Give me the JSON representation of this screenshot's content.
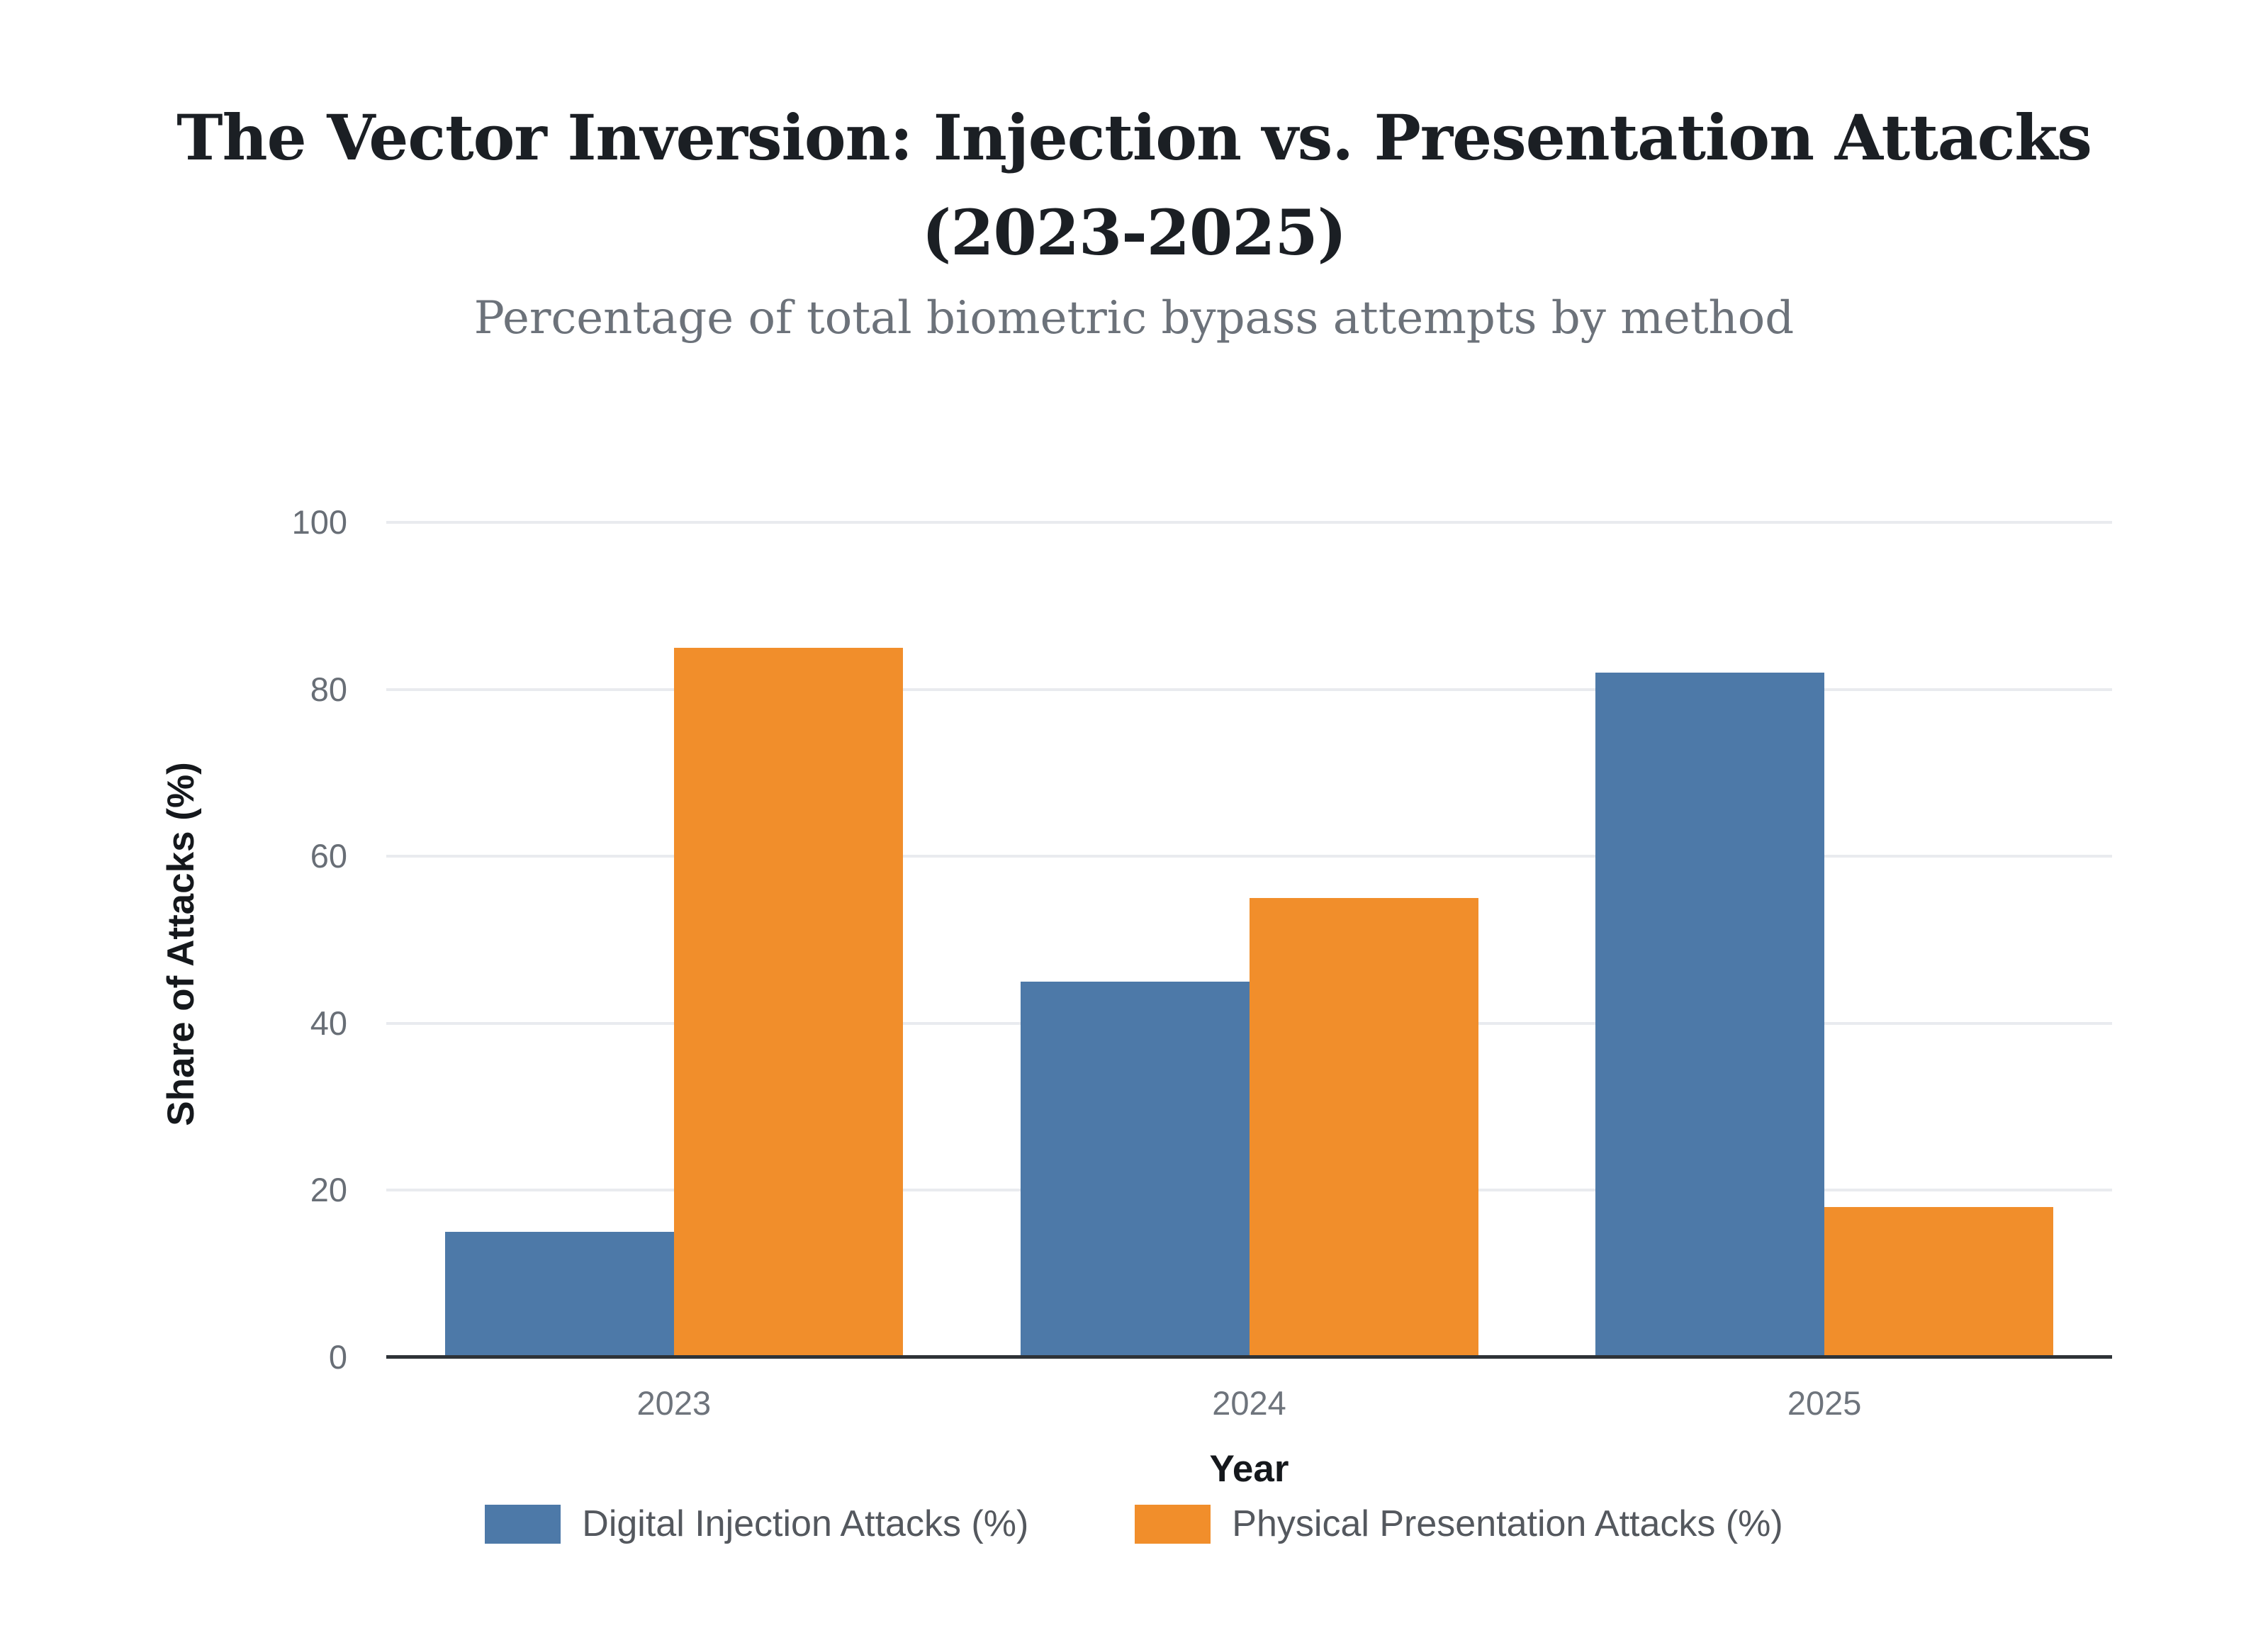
{
  "chart_data": {
    "type": "bar",
    "title": "The Vector Inversion: Injection vs. Presentation Attacks (2023-2025)",
    "subtitle": "Percentage of total biometric bypass attempts by method",
    "xlabel": "Year",
    "ylabel": "Share of Attacks (%)",
    "categories": [
      "2023",
      "2024",
      "2025"
    ],
    "series": [
      {
        "name": "Digital Injection Attacks (%)",
        "color": "#4d79a8",
        "values": [
          15,
          45,
          82
        ]
      },
      {
        "name": "Physical Presentation Attacks (%)",
        "color": "#f18e2b",
        "values": [
          85,
          55,
          18
        ]
      }
    ],
    "ylim": [
      0,
      100
    ],
    "yticks": [
      0,
      20,
      40,
      60,
      80,
      100
    ],
    "grid": true,
    "legend_position": "bottom"
  }
}
